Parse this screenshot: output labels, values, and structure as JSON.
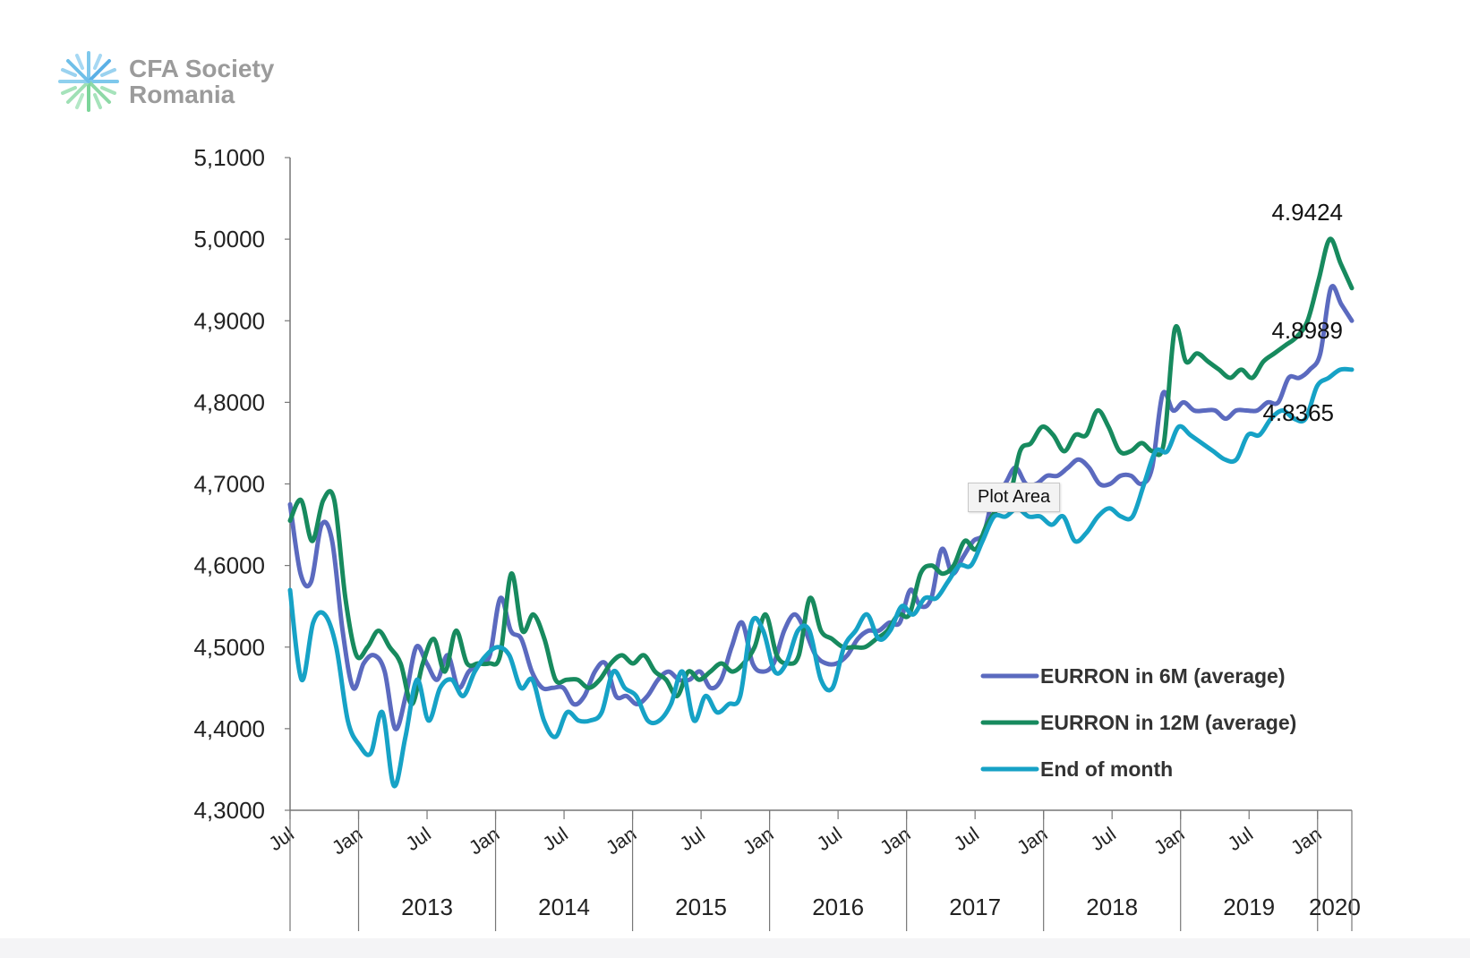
{
  "logo": {
    "line1": "CFA Society",
    "line2": "Romania"
  },
  "tooltip": "Plot Area",
  "chart_data": {
    "type": "line",
    "title": "",
    "xlabel": "",
    "ylabel": "",
    "ylim": [
      4.3,
      5.1
    ],
    "y_ticks": [
      "4,3000",
      "4,4000",
      "4,5000",
      "4,6000",
      "4,7000",
      "4,8000",
      "4,9000",
      "5,0000",
      "5,1000"
    ],
    "x_ticks": [
      "Jul",
      "Jan",
      "Jul",
      "Jan",
      "Jul",
      "Jan",
      "Jul",
      "Jan",
      "Jul",
      "Jan",
      "Jul",
      "Jan",
      "Jul",
      "Jan",
      "Jul",
      "Jan"
    ],
    "years": [
      "2013",
      "2014",
      "2015",
      "2016",
      "2017",
      "2018",
      "2019",
      "2020"
    ],
    "x_start": "2012-07",
    "x_end": "2020-04",
    "grid": false,
    "legend_position": "bottom-right",
    "series": [
      {
        "name": "EURRON in 6M (average)",
        "color": "#5b6abf",
        "values": [
          4.675,
          4.59,
          4.58,
          4.65,
          4.63,
          4.52,
          4.45,
          4.48,
          4.49,
          4.47,
          4.4,
          4.44,
          4.5,
          4.48,
          4.46,
          4.49,
          4.45,
          4.47,
          4.48,
          4.49,
          4.56,
          4.52,
          4.51,
          4.47,
          4.45,
          4.45,
          4.45,
          4.43,
          4.44,
          4.47,
          4.48,
          4.44,
          4.44,
          4.43,
          4.44,
          4.46,
          4.47,
          4.46,
          4.46,
          4.47,
          4.45,
          4.46,
          4.5,
          4.53,
          4.48,
          4.47,
          4.48,
          4.52,
          4.54,
          4.52,
          4.49,
          4.48,
          4.48,
          4.49,
          4.51,
          4.52,
          4.52,
          4.53,
          4.53,
          4.57,
          4.55,
          4.56,
          4.62,
          4.59,
          4.61,
          4.63,
          4.64,
          4.69,
          4.7,
          4.72,
          4.7,
          4.7,
          4.71,
          4.71,
          4.72,
          4.73,
          4.72,
          4.7,
          4.7,
          4.71,
          4.71,
          4.7,
          4.72,
          4.81,
          4.79,
          4.8,
          4.79,
          4.79,
          4.79,
          4.78,
          4.79,
          4.79,
          4.79,
          4.8,
          4.8,
          4.83,
          4.83,
          4.84,
          4.86,
          4.94,
          4.92,
          4.9
        ]
      },
      {
        "name": "EURRON in 12M (average)",
        "color": "#178a5e",
        "values": [
          4.655,
          4.68,
          4.63,
          4.68,
          4.68,
          4.56,
          4.49,
          4.5,
          4.52,
          4.5,
          4.48,
          4.43,
          4.48,
          4.51,
          4.47,
          4.52,
          4.48,
          4.48,
          4.48,
          4.49,
          4.59,
          4.52,
          4.54,
          4.51,
          4.46,
          4.46,
          4.46,
          4.45,
          4.46,
          4.48,
          4.49,
          4.48,
          4.49,
          4.47,
          4.46,
          4.44,
          4.47,
          4.46,
          4.47,
          4.48,
          4.47,
          4.48,
          4.5,
          4.54,
          4.49,
          4.48,
          4.49,
          4.56,
          4.52,
          4.51,
          4.5,
          4.5,
          4.5,
          4.51,
          4.52,
          4.54,
          4.54,
          4.59,
          4.6,
          4.59,
          4.6,
          4.63,
          4.62,
          4.65,
          4.67,
          4.68,
          4.74,
          4.75,
          4.77,
          4.76,
          4.74,
          4.76,
          4.76,
          4.79,
          4.77,
          4.74,
          4.74,
          4.75,
          4.74,
          4.75,
          4.89,
          4.85,
          4.86,
          4.85,
          4.84,
          4.83,
          4.84,
          4.83,
          4.85,
          4.86,
          4.87,
          4.88,
          4.9,
          4.95,
          5.0,
          4.97,
          4.94
        ]
      },
      {
        "name": "End of month",
        "color": "#16a2c6",
        "values": [
          4.57,
          4.46,
          4.53,
          4.54,
          4.5,
          4.41,
          4.38,
          4.37,
          4.42,
          4.33,
          4.39,
          4.46,
          4.41,
          4.45,
          4.46,
          4.44,
          4.47,
          4.49,
          4.5,
          4.49,
          4.45,
          4.46,
          4.41,
          4.39,
          4.42,
          4.41,
          4.41,
          4.42,
          4.47,
          4.45,
          4.44,
          4.41,
          4.41,
          4.43,
          4.47,
          4.41,
          4.44,
          4.42,
          4.43,
          4.44,
          4.53,
          4.52,
          4.47,
          4.48,
          4.52,
          4.52,
          4.46,
          4.45,
          4.5,
          4.52,
          4.54,
          4.51,
          4.52,
          4.55,
          4.54,
          4.56,
          4.56,
          4.58,
          4.6,
          4.6,
          4.63,
          4.66,
          4.66,
          4.67,
          4.66,
          4.66,
          4.65,
          4.66,
          4.63,
          4.64,
          4.66,
          4.67,
          4.66,
          4.66,
          4.7,
          4.74,
          4.74,
          4.77,
          4.76,
          4.75,
          4.74,
          4.73,
          4.73,
          4.76,
          4.76,
          4.78,
          4.79,
          4.78,
          4.78,
          4.82,
          4.83,
          4.84,
          4.84
        ]
      }
    ],
    "annotations": [
      {
        "text": "4.9424",
        "series": 1
      },
      {
        "text": "4.8989",
        "series": 0
      },
      {
        "text": "4.8365",
        "series": 2
      }
    ]
  }
}
